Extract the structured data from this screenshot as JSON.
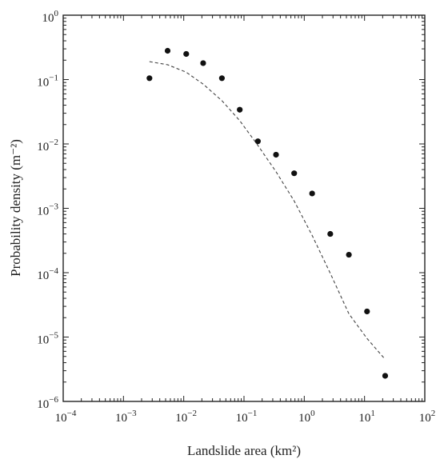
{
  "chart_data": {
    "type": "scatter",
    "xscale": "log",
    "yscale": "log",
    "xlim": [
      0.0001,
      100
    ],
    "ylim": [
      1e-06,
      1
    ],
    "xlabel": "Landslide area (km²)",
    "ylabel": "Probability density (m⁻²)",
    "grid": false,
    "x_ticks": [
      {
        "mantissa": "10",
        "exp": "−4"
      },
      {
        "mantissa": "10",
        "exp": "−3"
      },
      {
        "mantissa": "10",
        "exp": "−2"
      },
      {
        "mantissa": "10",
        "exp": "−1"
      },
      {
        "mantissa": "10",
        "exp": "0",
        "text": "10⁰"
      },
      {
        "mantissa": "10",
        "exp": "1"
      },
      {
        "mantissa": "10",
        "exp": "2"
      }
    ],
    "y_ticks": [
      {
        "mantissa": "10",
        "exp": "−6"
      },
      {
        "mantissa": "10",
        "exp": "−5"
      },
      {
        "mantissa": "10",
        "exp": "−4"
      },
      {
        "mantissa": "10",
        "exp": "−3"
      },
      {
        "mantissa": "10",
        "exp": "−2"
      },
      {
        "mantissa": "10",
        "exp": "−1"
      },
      {
        "mantissa": "10",
        "exp": "0"
      }
    ],
    "series": [
      {
        "kind": "points",
        "x": [
          0.0027,
          0.0054,
          0.011,
          0.021,
          0.043,
          0.085,
          0.17,
          0.34,
          0.68,
          1.35,
          2.7,
          5.5,
          11,
          22
        ],
        "y": [
          0.105,
          0.28,
          0.25,
          0.18,
          0.105,
          0.034,
          0.011,
          0.0068,
          0.0035,
          0.0017,
          0.0004,
          0.00019,
          2.5e-05,
          2.5e-06
        ]
      },
      {
        "kind": "fit",
        "style": "dashed",
        "x": [
          0.0027,
          0.0054,
          0.011,
          0.021,
          0.043,
          0.085,
          0.17,
          0.34,
          0.68,
          1.35,
          2.7,
          5.5,
          11,
          22
        ],
        "y": [
          0.19,
          0.17,
          0.13,
          0.085,
          0.047,
          0.023,
          0.0095,
          0.0037,
          0.0013,
          0.00038,
          9.8e-05,
          2.3e-05,
          9.5e-06,
          4.5e-06
        ]
      }
    ]
  }
}
